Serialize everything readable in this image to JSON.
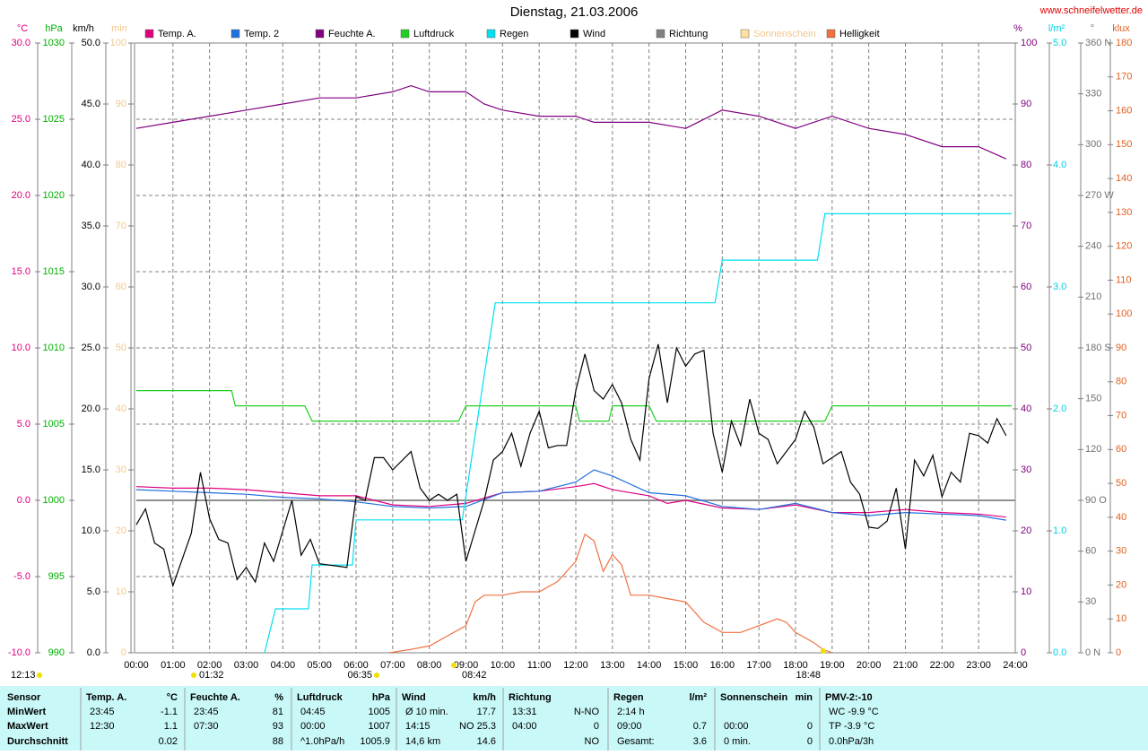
{
  "chart_data": {
    "type": "line",
    "title": "Dienstag, 21.03.2006",
    "source": "www.schneifelwetter.de",
    "xlim": [
      0,
      24
    ],
    "xticks": [
      {
        "value": 0,
        "label": "00:00"
      },
      {
        "value": 1,
        "label": "01:00"
      },
      {
        "value": 2,
        "label": "02:00"
      },
      {
        "value": 3,
        "label": "03:00"
      },
      {
        "value": 4,
        "label": "04:00"
      },
      {
        "value": 5,
        "label": "05:00"
      },
      {
        "value": 6,
        "label": "06:00"
      },
      {
        "value": 7,
        "label": "07:00"
      },
      {
        "value": 8,
        "label": "08:00"
      },
      {
        "value": 9,
        "label": "09:00"
      },
      {
        "value": 10,
        "label": "10:00"
      },
      {
        "value": 11,
        "label": "11:00"
      },
      {
        "value": 12,
        "label": "12:00"
      },
      {
        "value": 13,
        "label": "13:00"
      },
      {
        "value": 14,
        "label": "14:00"
      },
      {
        "value": 15,
        "label": "15:00"
      },
      {
        "value": 16,
        "label": "16:00"
      },
      {
        "value": 17,
        "label": "17:00"
      },
      {
        "value": 18,
        "label": "18:00"
      },
      {
        "value": 19,
        "label": "19:00"
      },
      {
        "value": 20,
        "label": "20:00"
      },
      {
        "value": 21,
        "label": "21:00"
      },
      {
        "value": 22,
        "label": "22:00"
      },
      {
        "value": 23,
        "label": "23:00"
      },
      {
        "value": 24,
        "label": "24:00"
      }
    ],
    "grid": true,
    "zero_line": true,
    "axes": [
      {
        "label": "°C",
        "color": "#e0007f",
        "lim": [
          -10,
          30
        ],
        "ticks": [
          {
            "value": -10,
            "label": "-10.0"
          },
          {
            "value": -5,
            "label": "-5.0"
          },
          {
            "value": 0,
            "label": "0.0"
          },
          {
            "value": 5,
            "label": "5.0"
          },
          {
            "value": 10,
            "label": "10.0"
          },
          {
            "value": 15,
            "label": "15.0"
          },
          {
            "value": 20,
            "label": "20.0"
          },
          {
            "value": 25,
            "label": "25.0"
          },
          {
            "value": 30,
            "label": "30.0"
          }
        ]
      },
      {
        "label": "hPa",
        "color": "#00b000",
        "lim": [
          990,
          1030
        ],
        "ticks": [
          990,
          995,
          1000,
          1005,
          1010,
          1015,
          1020,
          1025,
          1030
        ]
      },
      {
        "label": "km/h",
        "color": "#000000",
        "lim": [
          0,
          50
        ],
        "ticks": [
          {
            "value": 0,
            "label": "0.0"
          },
          {
            "value": 5,
            "label": "5.0"
          },
          {
            "value": 10,
            "label": "10.0"
          },
          {
            "value": 15,
            "label": "15.0"
          },
          {
            "value": 20,
            "label": "20.0"
          },
          {
            "value": 25,
            "label": "25.0"
          },
          {
            "value": 30,
            "label": "30.0"
          },
          {
            "value": 35,
            "label": "35.0"
          },
          {
            "value": 40,
            "label": "40.0"
          },
          {
            "value": 45,
            "label": "45.0"
          },
          {
            "value": 50,
            "label": "50.0"
          }
        ]
      },
      {
        "label": "min",
        "color": "#f0c890",
        "lim": [
          0,
          100
        ],
        "ticks": [
          0,
          10,
          20,
          30,
          40,
          50,
          60,
          70,
          80,
          90,
          100
        ]
      },
      {
        "label": "%",
        "color": "#800080",
        "lim": [
          0,
          100
        ],
        "ticks": [
          0,
          10,
          20,
          30,
          40,
          50,
          60,
          70,
          80,
          90,
          100
        ]
      },
      {
        "label": "l/m²",
        "color": "#00d0e0",
        "lim": [
          0,
          5
        ],
        "ticks": [
          {
            "value": 0,
            "label": "0.0"
          },
          {
            "value": 1,
            "label": "1.0"
          },
          {
            "value": 2,
            "label": "2.0"
          },
          {
            "value": 3,
            "label": "3.0"
          },
          {
            "value": 4,
            "label": "4.0"
          },
          {
            "value": 5,
            "label": "5.0"
          }
        ]
      },
      {
        "label": "°",
        "color": "#707070",
        "lim": [
          0,
          360
        ],
        "ticks": [
          {
            "value": 0,
            "label": "0    N"
          },
          30,
          60,
          {
            "value": 90,
            "label": "90  O"
          },
          120,
          150,
          {
            "value": 180,
            "label": "180 S"
          },
          210,
          240,
          {
            "value": 270,
            "label": "270 W"
          },
          300,
          330,
          {
            "value": 360,
            "label": "360 N"
          }
        ]
      },
      {
        "label": "klux",
        "color": "#e06020",
        "lim": [
          0,
          180
        ],
        "ticks": [
          0,
          10,
          20,
          30,
          40,
          50,
          60,
          70,
          80,
          90,
          100,
          110,
          120,
          130,
          140,
          150,
          160,
          170,
          180
        ]
      }
    ],
    "series": [
      {
        "name": "Temp. A.",
        "color": "#e0007f",
        "axis": 0,
        "x": [
          0,
          1,
          2,
          3,
          4,
          5,
          6,
          7,
          8,
          9,
          10,
          11,
          12,
          12.5,
          13,
          14,
          14.5,
          15,
          16,
          17,
          18,
          19,
          20,
          21,
          22,
          23,
          23.75
        ],
        "values": [
          0.9,
          0.8,
          0.8,
          0.7,
          0.5,
          0.3,
          0.3,
          -0.3,
          -0.4,
          -0.2,
          0.5,
          0.6,
          0.9,
          1.1,
          0.7,
          0.3,
          -0.2,
          0,
          -0.5,
          -0.6,
          -0.3,
          -0.8,
          -0.8,
          -0.6,
          -0.8,
          -0.9,
          -1.1
        ]
      },
      {
        "name": "Temp. 2",
        "color": "#2070e0",
        "axis": 0,
        "x": [
          0,
          1,
          2,
          3,
          4,
          5,
          6,
          7,
          8,
          9,
          10,
          11,
          12,
          12.5,
          13,
          14,
          15,
          16,
          17,
          18,
          19,
          20,
          21,
          22,
          23,
          23.75
        ],
        "values": [
          0.7,
          0.6,
          0.5,
          0.4,
          0.2,
          0.1,
          -0.1,
          -0.4,
          -0.5,
          -0.4,
          0.5,
          0.6,
          1.2,
          2.0,
          1.6,
          0.5,
          0.3,
          -0.4,
          -0.6,
          -0.2,
          -0.8,
          -1.0,
          -0.8,
          -0.9,
          -1.0,
          -1.3
        ]
      },
      {
        "name": "Feuchte A.",
        "color": "#800080",
        "axis": 4,
        "x": [
          0,
          1,
          2,
          3,
          4,
          5,
          6,
          7,
          7.5,
          8,
          9,
          9.5,
          10,
          11,
          12,
          12.5,
          13,
          14,
          15,
          16,
          17,
          18,
          19,
          20,
          21,
          22,
          22.5,
          23,
          23.75
        ],
        "values": [
          86,
          87,
          88,
          89,
          90,
          91,
          91,
          92,
          93,
          92,
          92,
          90,
          89,
          88,
          88,
          87,
          87,
          87,
          86,
          89,
          88,
          86,
          88,
          86,
          85,
          83,
          83,
          83,
          81
        ]
      },
      {
        "name": "Luftdruck",
        "color": "#20d020",
        "axis": 1,
        "x": [
          0,
          2.6,
          2.7,
          4.6,
          4.8,
          8.8,
          9.0,
          12.0,
          12.1,
          12.9,
          13.0,
          14.0,
          14.2,
          18.8,
          19.0,
          23.9
        ],
        "values": [
          1007.2,
          1007.2,
          1006.2,
          1006.2,
          1005.2,
          1005.2,
          1006.2,
          1006.2,
          1005.2,
          1005.2,
          1006.2,
          1006.2,
          1005.2,
          1005.2,
          1006.2,
          1006.2
        ]
      },
      {
        "name": "Regen",
        "color": "#00e0f0",
        "axis": 5,
        "x": [
          3.5,
          3.8,
          4.7,
          4.8,
          5.9,
          6.0,
          8.9,
          9.8,
          15.8,
          16.0,
          18.6,
          18.8,
          23.9
        ],
        "values": [
          0,
          0.36,
          0.36,
          0.72,
          0.72,
          1.09,
          1.09,
          2.87,
          2.87,
          3.22,
          3.22,
          3.6,
          3.6
        ]
      },
      {
        "name": "Wind",
        "color": "#000000",
        "axis": 2,
        "x": [
          0,
          0.25,
          0.5,
          0.75,
          1,
          1.5,
          1.75,
          2,
          2.25,
          2.5,
          2.75,
          3,
          3.25,
          3.5,
          3.75,
          4,
          4.25,
          4.5,
          4.75,
          5,
          5.75,
          6,
          6.25,
          6.5,
          6.75,
          7,
          7.5,
          7.75,
          8,
          8.25,
          8.5,
          8.75,
          9,
          9.5,
          9.75,
          10,
          10.25,
          10.5,
          10.75,
          11,
          11.25,
          11.5,
          11.75,
          12,
          12.25,
          12.5,
          12.75,
          13,
          13.25,
          13.5,
          13.75,
          14,
          14.25,
          14.5,
          14.75,
          15,
          15.25,
          15.5,
          15.75,
          16,
          16.25,
          16.5,
          16.75,
          17,
          17.25,
          17.5,
          17.75,
          18,
          18.25,
          18.5,
          18.75,
          19,
          19.25,
          19.5,
          19.75,
          20,
          20.25,
          20.5,
          20.75,
          21,
          21.25,
          21.5,
          21.75,
          22,
          22.25,
          22.5,
          22.75,
          23,
          23.25,
          23.5,
          23.75
        ],
        "values": [
          10.5,
          11.8,
          9,
          8.5,
          5.5,
          9.8,
          14.8,
          11,
          9.3,
          9,
          6,
          7,
          5.8,
          9,
          7.5,
          10,
          12.5,
          8,
          9.3,
          7.3,
          7,
          12.8,
          12.5,
          16,
          16,
          15,
          16.5,
          13.5,
          12.5,
          13,
          12.5,
          13,
          7.5,
          12.5,
          15.8,
          16.5,
          18,
          15.3,
          18,
          19.8,
          16.8,
          17,
          17,
          21.5,
          24.5,
          21.5,
          20.8,
          22,
          20.5,
          17.5,
          15.8,
          22.5,
          25.3,
          20.5,
          25,
          23.5,
          24.5,
          24.8,
          18,
          14.8,
          19,
          17,
          20.8,
          18,
          17.5,
          15.5,
          16.5,
          17.5,
          19.8,
          18.5,
          15.5,
          16,
          16.5,
          14,
          13,
          10.3,
          10.2,
          10.8,
          13.5,
          8.5,
          15.8,
          14.5,
          16.2,
          12.8,
          14.8,
          14,
          18,
          17.8,
          17.2,
          19.2,
          17.8
        ]
      },
      {
        "name": "Richtung",
        "color": "#808080",
        "axis": 6,
        "x": [],
        "values": []
      },
      {
        "name": "Sonnenschein",
        "color": "#ffe0a0",
        "axis": 3,
        "x": [],
        "values": []
      },
      {
        "name": "Helligkeit",
        "color": "#f07040",
        "axis": 7,
        "x": [
          6.9,
          7.5,
          8,
          8.5,
          9,
          9.25,
          9.5,
          10,
          10.5,
          11,
          11.5,
          12,
          12.25,
          12.5,
          12.75,
          13,
          13.25,
          13.5,
          14,
          14.5,
          15,
          15.5,
          16,
          16.5,
          16.75,
          17,
          17.5,
          17.75,
          18,
          18.5,
          18.75,
          19
        ],
        "values": [
          0,
          1,
          2,
          5,
          8,
          15,
          17,
          17,
          18,
          18,
          21,
          27,
          35,
          33,
          24,
          29,
          26,
          17,
          17,
          16,
          15,
          9,
          6,
          6,
          7,
          8,
          10,
          9,
          6,
          3,
          1,
          0
        ]
      }
    ],
    "annotations": [
      "12:13",
      "01:32",
      "06:35",
      "08:42",
      "18:48"
    ]
  },
  "table": {
    "columns": [
      {
        "header": "Sensor",
        "rows": [
          {
            "value": "MinWert"
          },
          {
            "value": "MaxWert"
          },
          {
            "value": "Durchschnitt"
          }
        ]
      },
      {
        "header": "Temp. A.",
        "unit": "°C",
        "rows": [
          {
            "time": "23:45",
            "value": "-1.1"
          },
          {
            "time": "12:30",
            "value": "1.1"
          },
          {
            "value": "0.02"
          }
        ]
      },
      {
        "header": "Feuchte A.",
        "unit": "%",
        "rows": [
          {
            "time": "23:45",
            "value": "81"
          },
          {
            "time": "07:30",
            "value": "93"
          },
          {
            "value": "88"
          }
        ]
      },
      {
        "header": "Luftdruck",
        "unit": "hPa",
        "rows": [
          {
            "time": "04:45",
            "value": "1005"
          },
          {
            "time": "00:00",
            "value": "1007"
          },
          {
            "time": "^1.0hPa/h",
            "value": "1005.9"
          }
        ]
      },
      {
        "header": "Wind",
        "unit": "km/h",
        "rows": [
          {
            "time": "Ø 10 min.",
            "value": "17.7"
          },
          {
            "time": "14:15",
            "value": "NO 25.3"
          },
          {
            "time": "14,6 km",
            "value": "14.6"
          }
        ]
      },
      {
        "header": "Richtung",
        "rows": [
          {
            "time": "13:31",
            "value": "N-NO"
          },
          {
            "time": "04:00",
            "value": "0"
          },
          {
            "value": "NO"
          }
        ]
      },
      {
        "header": "Regen",
        "unit": "l/m²",
        "rows": [
          {
            "time": "2:14 h"
          },
          {
            "time": "09:00",
            "value": "0.7"
          },
          {
            "time": "Gesamt:",
            "value": "3.6"
          }
        ]
      },
      {
        "header": "Sonnenschein",
        "unit": "min",
        "rows": [
          {},
          {
            "time": "00:00",
            "value": "0"
          },
          {
            "time": "0 min.",
            "value": "0"
          }
        ]
      },
      {
        "header": "PMV-2:-10",
        "rows": [
          {
            "time": "WC -9.9 °C"
          },
          {
            "time": "TP -3.9 °C"
          },
          {
            "time": "0.0hPa/3h"
          }
        ]
      }
    ]
  }
}
